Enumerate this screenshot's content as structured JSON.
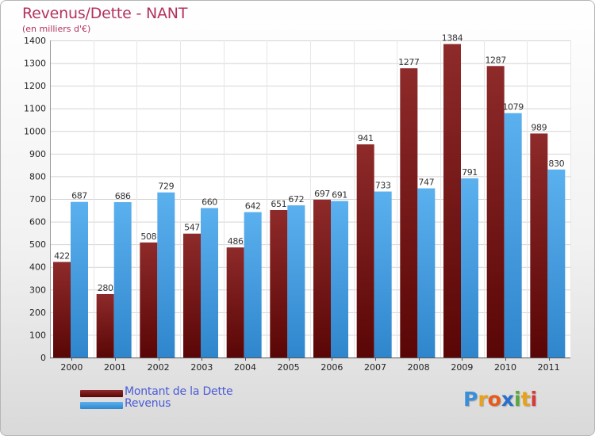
{
  "title": "Revenus/Dette - NANT",
  "subtitle": "(en milliers d'€)",
  "chart_data": {
    "type": "bar",
    "title": "Revenus/Dette - NANT",
    "ylabel": "(en milliers d'€)",
    "xlabel": "",
    "categories": [
      "2000",
      "2001",
      "2002",
      "2003",
      "2004",
      "2005",
      "2006",
      "2007",
      "2008",
      "2009",
      "2010",
      "2011"
    ],
    "series": [
      {
        "name": "Montant de la Dette",
        "color": "#7a1a1a",
        "values": [
          422,
          280,
          508,
          547,
          486,
          651,
          697,
          941,
          1277,
          1384,
          1287,
          989
        ]
      },
      {
        "name": "Revenus",
        "color": "#4aa3e6",
        "values": [
          687,
          686,
          729,
          660,
          642,
          672,
          691,
          733,
          747,
          791,
          1079,
          830
        ]
      }
    ],
    "yticks": [
      0,
      100,
      200,
      300,
      400,
      500,
      600,
      700,
      800,
      900,
      1000,
      1100,
      1200,
      1300,
      1400
    ],
    "ylim": [
      0,
      1400
    ],
    "grid": true,
    "legend": "bottom-left"
  },
  "legend": {
    "items": [
      {
        "label": "Montant de la Dette",
        "color": "#7a1a1a"
      },
      {
        "label": "Revenus",
        "color": "#4aa3e6"
      }
    ]
  },
  "logo": {
    "letters": [
      "P",
      "r",
      "o",
      "x",
      "i",
      "t",
      "i"
    ],
    "colors": [
      "#3a8fd8",
      "#e8a21a",
      "#e85a1a",
      "#2a6fc8",
      "#5aa83a",
      "#e8a21a",
      "#d83a3a"
    ]
  }
}
